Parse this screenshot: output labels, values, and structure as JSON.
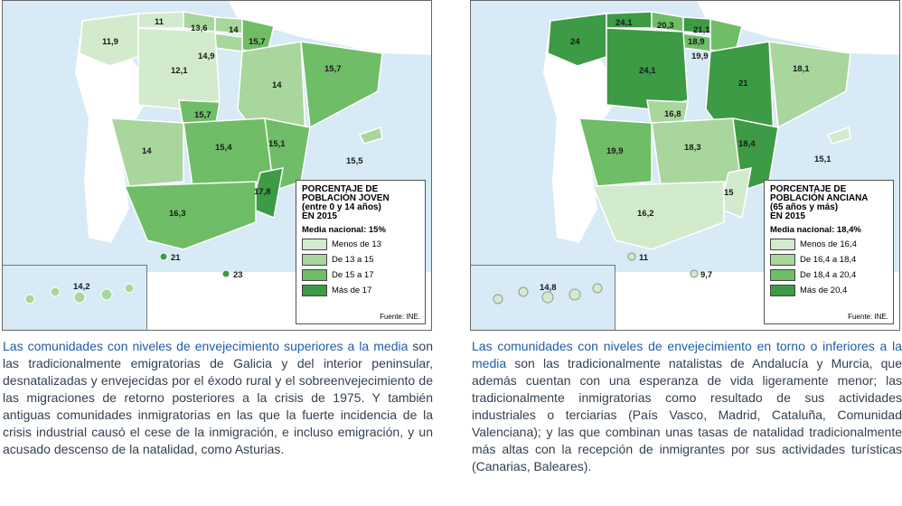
{
  "map_left": {
    "legend": {
      "title_lines": [
        "PORCENTAJE DE",
        "POBLACIÓN JOVEN",
        "(entre 0 y 14 años)",
        "EN 2015"
      ],
      "media": "Media nacional: 15%",
      "items": [
        {
          "label": "Menos de 13",
          "color": "#d2ebcd"
        },
        {
          "label": "De 13 a 15",
          "color": "#a8d69d"
        },
        {
          "label": "De 15 a 17",
          "color": "#6fbd66"
        },
        {
          "label": "Más de 17",
          "color": "#3d9a45"
        }
      ],
      "source": "Fuente: INE."
    },
    "values": [
      "11",
      "13,6",
      "14",
      "11,9",
      "15,7",
      "14,9",
      "12,1",
      "15,7",
      "14",
      "15,7",
      "14",
      "15,4",
      "15,1",
      "15,5",
      "17,8",
      "16,3",
      "21",
      "23",
      "14,2"
    ]
  },
  "map_right": {
    "legend": {
      "title_lines": [
        "PORCENTAJE DE",
        "POBLACIÓN ANCIANA",
        "(65 años y más)",
        "EN 2015"
      ],
      "media": "Media nacional: 18,4%",
      "items": [
        {
          "label": "Menos de 16,4",
          "color": "#d2ebcd"
        },
        {
          "label": "De 16,4 a 18,4",
          "color": "#a8d69d"
        },
        {
          "label": "De 18,4 a 20,4",
          "color": "#6fbd66"
        },
        {
          "label": "Más de 20,4",
          "color": "#3d9a45"
        }
      ],
      "source": "Fuente: INE."
    },
    "values": [
      "24,1",
      "20,3",
      "21,1",
      "24",
      "18,9",
      "19,9",
      "18,1",
      "24,1",
      "21",
      "16,8",
      "19,9",
      "18,3",
      "18,4",
      "15,1",
      "15",
      "16,2",
      "11",
      "9,7",
      "14,8"
    ]
  },
  "text_left": {
    "highlight": "Las comunidades con niveles de envejecimiento superiores a la media",
    "body": " son las tradicionalmente emigratorias de Galicia y del interior peninsular, desnatalizadas y envejecidas por el éxodo rural y el sobreenvejecimiento de las migraciones de retorno posteriores a la crisis de 1975. Y también antiguas comunidades inmigratorias en las que la fuerte incidencia de la crisis industrial causó el cese de la inmigración, e incluso emigración, y un acusado descenso de la natalidad, como Asturias."
  },
  "text_right": {
    "highlight": "Las comunidades con niveles de envejecimiento en torno o inferiores a la media",
    "body": " son las tradicionalmente natalistas de Andalucía y Murcia, que además cuentan con una esperanza de vida ligeramente menor; las tradicionalmente inmigratorias como resultado de sus actividades industriales o terciarias (País Vasco, Madrid, Cataluña, Comunidad Valenciana); y las que combinan unas tasas de natalidad tradicionalmente más altas con la recepción de inmigrantes por sus actividades turísticas (Canarias, Baleares)."
  }
}
